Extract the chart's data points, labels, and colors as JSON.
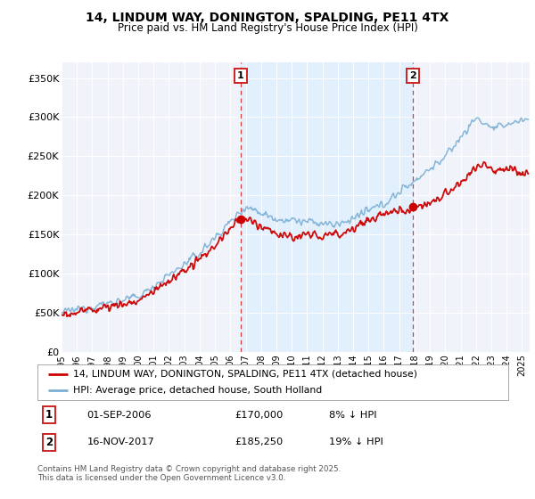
{
  "title": "14, LINDUM WAY, DONINGTON, SPALDING, PE11 4TX",
  "subtitle": "Price paid vs. HM Land Registry's House Price Index (HPI)",
  "ylabel_ticks": [
    "£0",
    "£50K",
    "£100K",
    "£150K",
    "£200K",
    "£250K",
    "£300K",
    "£350K"
  ],
  "ytick_values": [
    0,
    50000,
    100000,
    150000,
    200000,
    250000,
    300000,
    350000
  ],
  "ylim": [
    0,
    370000
  ],
  "xlim_start": 1995.0,
  "xlim_end": 2025.5,
  "red_line_color": "#cc0000",
  "blue_line_color": "#7bafd4",
  "shade_color": "#ddeeff",
  "vline_color": "#cc2222",
  "vline1_x": 2006.67,
  "vline2_x": 2017.88,
  "marker1_x": 2006.67,
  "marker1_y": 170000,
  "marker2_x": 2017.88,
  "marker2_y": 185250,
  "legend_label_red": "14, LINDUM WAY, DONINGTON, SPALDING, PE11 4TX (detached house)",
  "legend_label_blue": "HPI: Average price, detached house, South Holland",
  "annotation1_label": "1",
  "annotation2_label": "2",
  "annotation1_date": "01-SEP-2006",
  "annotation1_price": "£170,000",
  "annotation1_hpi": "8% ↓ HPI",
  "annotation2_date": "16-NOV-2017",
  "annotation2_price": "£185,250",
  "annotation2_hpi": "19% ↓ HPI",
  "footer": "Contains HM Land Registry data © Crown copyright and database right 2025.\nThis data is licensed under the Open Government Licence v3.0.",
  "background_color": "#ffffff",
  "plot_bg_color": "#f0f4fa"
}
